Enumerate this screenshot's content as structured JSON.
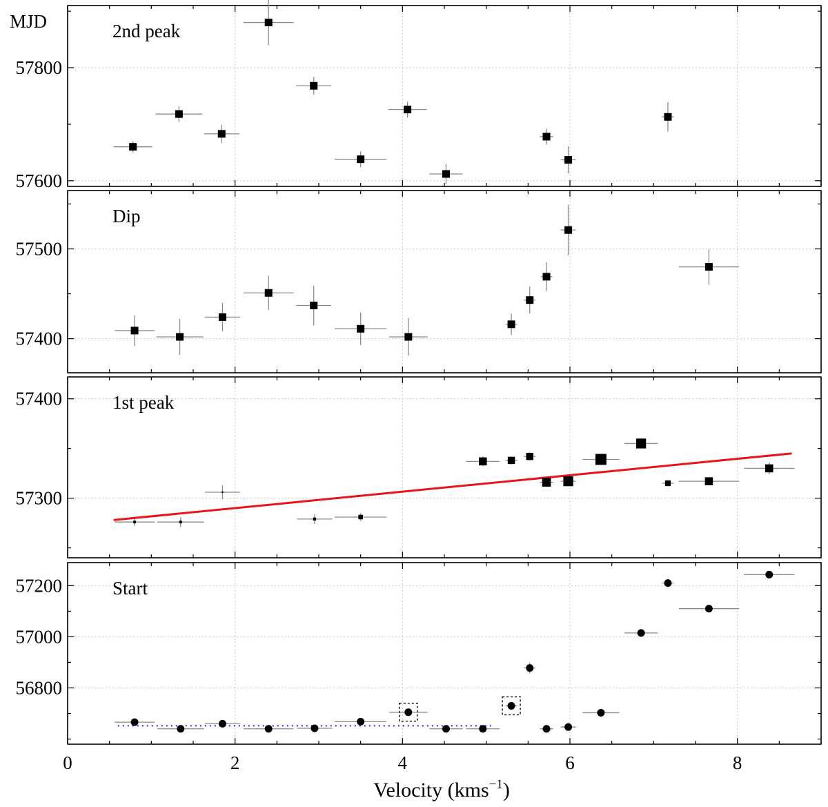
{
  "chart_data": {
    "type": "scatter",
    "ylabel": "MJD",
    "xlabel": "Velocity (kms",
    "xlabel_sup": "−1",
    "xlabel_close": ")",
    "xlim": [
      0,
      9
    ],
    "xticks": [
      0,
      2,
      4,
      6,
      8
    ],
    "xtick_labels": [
      "0",
      "2",
      "4",
      "6",
      "8"
    ],
    "grid": true,
    "colors": {
      "marker": "#000000",
      "errorbar": "#8a8a8a",
      "fit_line": "#e8141b",
      "reference_line": "#1a1aff",
      "grid": "#c8c8c8"
    },
    "panels": [
      {
        "label": "2nd peak",
        "marker": "square",
        "ylim": [
          57590,
          57910
        ],
        "yticks": [
          57600,
          57800
        ],
        "ytick_labels": [
          "57600",
          "57800"
        ],
        "points": [
          {
            "x": 0.78,
            "y": 57660,
            "xerr": 0.23,
            "yerr": 10,
            "size": 1
          },
          {
            "x": 1.33,
            "y": 57718,
            "xerr": 0.28,
            "yerr": 14,
            "size": 1
          },
          {
            "x": 1.84,
            "y": 57683,
            "xerr": 0.21,
            "yerr": 16,
            "size": 1
          },
          {
            "x": 2.4,
            "y": 57880,
            "xerr": 0.3,
            "yerr": 40,
            "size": 1
          },
          {
            "x": 2.94,
            "y": 57768,
            "xerr": 0.21,
            "yerr": 16,
            "size": 1
          },
          {
            "x": 3.5,
            "y": 57638,
            "xerr": 0.31,
            "yerr": 14,
            "size": 1
          },
          {
            "x": 4.06,
            "y": 57726,
            "xerr": 0.23,
            "yerr": 14,
            "size": 1
          },
          {
            "x": 4.52,
            "y": 57612,
            "xerr": 0.2,
            "yerr": 18,
            "size": 1
          },
          {
            "x": 5.72,
            "y": 57678,
            "xerr": 0.08,
            "yerr": 14,
            "size": 1
          },
          {
            "x": 5.98,
            "y": 57637,
            "xerr": 0.09,
            "yerr": 24,
            "size": 1
          },
          {
            "x": 7.17,
            "y": 57713,
            "xerr": 0.07,
            "yerr": 26,
            "size": 1
          }
        ]
      },
      {
        "label": "Dip",
        "marker": "square",
        "ylim": [
          57362,
          57565
        ],
        "yticks": [
          57400,
          57500
        ],
        "ytick_labels": [
          "57400",
          "57500"
        ],
        "points": [
          {
            "x": 0.8,
            "y": 57409,
            "xerr": 0.24,
            "yerr": 17,
            "size": 1
          },
          {
            "x": 1.34,
            "y": 57402,
            "xerr": 0.28,
            "yerr": 20,
            "size": 1
          },
          {
            "x": 1.85,
            "y": 57424,
            "xerr": 0.21,
            "yerr": 16,
            "size": 1
          },
          {
            "x": 2.4,
            "y": 57451,
            "xerr": 0.3,
            "yerr": 19,
            "size": 1
          },
          {
            "x": 2.94,
            "y": 57437,
            "xerr": 0.21,
            "yerr": 22,
            "size": 1
          },
          {
            "x": 3.5,
            "y": 57411,
            "xerr": 0.31,
            "yerr": 18,
            "size": 1
          },
          {
            "x": 4.07,
            "y": 57402,
            "xerr": 0.23,
            "yerr": 21,
            "size": 1
          },
          {
            "x": 5.3,
            "y": 57416,
            "xerr": 0.07,
            "yerr": 12,
            "size": 1
          },
          {
            "x": 5.52,
            "y": 57443,
            "xerr": 0.07,
            "yerr": 15,
            "size": 1
          },
          {
            "x": 5.72,
            "y": 57469,
            "xerr": 0.07,
            "yerr": 16,
            "size": 1
          },
          {
            "x": 5.98,
            "y": 57521,
            "xerr": 0.09,
            "yerr": 28,
            "size": 1
          },
          {
            "x": 7.66,
            "y": 57480,
            "xerr": 0.36,
            "yerr": 20,
            "size": 1
          }
        ]
      },
      {
        "label": "1st peak",
        "marker": "square",
        "ylim": [
          57240,
          57422
        ],
        "yticks": [
          57300,
          57400
        ],
        "ytick_labels": [
          "57300",
          "57400"
        ],
        "points": [
          {
            "x": 0.8,
            "y": 57276,
            "xerr": 0.24,
            "yerr": 4,
            "size": 0.35
          },
          {
            "x": 1.35,
            "y": 57276,
            "xerr": 0.28,
            "yerr": 5,
            "size": 0.35
          },
          {
            "x": 1.85,
            "y": 57306,
            "xerr": 0.21,
            "yerr": 7,
            "size": 0.2
          },
          {
            "x": 2.95,
            "y": 57279,
            "xerr": 0.21,
            "yerr": 5,
            "size": 0.4
          },
          {
            "x": 3.5,
            "y": 57281,
            "xerr": 0.31,
            "yerr": 4,
            "size": 0.6
          },
          {
            "x": 4.96,
            "y": 57337,
            "xerr": 0.2,
            "yerr": 5,
            "size": 1.05
          },
          {
            "x": 5.3,
            "y": 57338,
            "xerr": 0.07,
            "yerr": 4,
            "size": 0.95
          },
          {
            "x": 5.52,
            "y": 57342,
            "xerr": 0.07,
            "yerr": 4,
            "size": 0.95
          },
          {
            "x": 5.72,
            "y": 57316,
            "xerr": 0.08,
            "yerr": 4,
            "size": 1.15
          },
          {
            "x": 5.98,
            "y": 57317,
            "xerr": 0.09,
            "yerr": 4,
            "size": 1.3
          },
          {
            "x": 6.37,
            "y": 57339,
            "xerr": 0.22,
            "yerr": 4,
            "size": 1.45
          },
          {
            "x": 6.85,
            "y": 57355,
            "xerr": 0.2,
            "yerr": 4,
            "size": 1.3
          },
          {
            "x": 7.17,
            "y": 57315,
            "xerr": 0.07,
            "yerr": 3,
            "size": 0.75
          },
          {
            "x": 7.66,
            "y": 57317,
            "xerr": 0.36,
            "yerr": 3,
            "size": 1.05
          },
          {
            "x": 8.38,
            "y": 57330,
            "xerr": 0.3,
            "yerr": 6,
            "size": 1.05
          }
        ],
        "fit_line": {
          "x": [
            0.55,
            8.65
          ],
          "y": [
            57278,
            57345
          ]
        }
      },
      {
        "label": "Start",
        "marker": "circle",
        "ylim": [
          56580,
          57290
        ],
        "yticks": [
          56800,
          57000,
          57200
        ],
        "ytick_labels": [
          "56800",
          "57000",
          "57200"
        ],
        "points": [
          {
            "x": 0.8,
            "y": 56666,
            "xerr": 0.24,
            "yerr": 0
          },
          {
            "x": 1.35,
            "y": 56640,
            "xerr": 0.28,
            "yerr": 0
          },
          {
            "x": 1.85,
            "y": 56660,
            "xerr": 0.21,
            "yerr": 0
          },
          {
            "x": 2.4,
            "y": 56640,
            "xerr": 0.3,
            "yerr": 0
          },
          {
            "x": 2.95,
            "y": 56642,
            "xerr": 0.21,
            "yerr": 0
          },
          {
            "x": 3.5,
            "y": 56668,
            "xerr": 0.31,
            "yerr": 0
          },
          {
            "x": 4.07,
            "y": 56705,
            "xerr": 0.23,
            "yerr": 0,
            "boxed": true
          },
          {
            "x": 4.52,
            "y": 56640,
            "xerr": 0.2,
            "yerr": 0
          },
          {
            "x": 4.96,
            "y": 56640,
            "xerr": 0.2,
            "yerr": 0
          },
          {
            "x": 5.3,
            "y": 56730,
            "xerr": 0.07,
            "yerr": 0,
            "boxed": true
          },
          {
            "x": 5.52,
            "y": 56878,
            "xerr": 0.07,
            "yerr": 22
          },
          {
            "x": 5.72,
            "y": 56640,
            "xerr": 0.08,
            "yerr": 0
          },
          {
            "x": 5.98,
            "y": 56647,
            "xerr": 0.09,
            "yerr": 0
          },
          {
            "x": 6.37,
            "y": 56703,
            "xerr": 0.22,
            "yerr": 0
          },
          {
            "x": 6.85,
            "y": 57015,
            "xerr": 0.2,
            "yerr": 0
          },
          {
            "x": 7.17,
            "y": 57210,
            "xerr": 0.07,
            "yerr": 0
          },
          {
            "x": 7.66,
            "y": 57110,
            "xerr": 0.36,
            "yerr": 0
          },
          {
            "x": 8.38,
            "y": 57243,
            "xerr": 0.3,
            "yerr": 0
          }
        ],
        "reference_line": {
          "x": [
            0.6,
            5.1
          ],
          "y": [
            56652,
            56652
          ]
        }
      }
    ]
  }
}
